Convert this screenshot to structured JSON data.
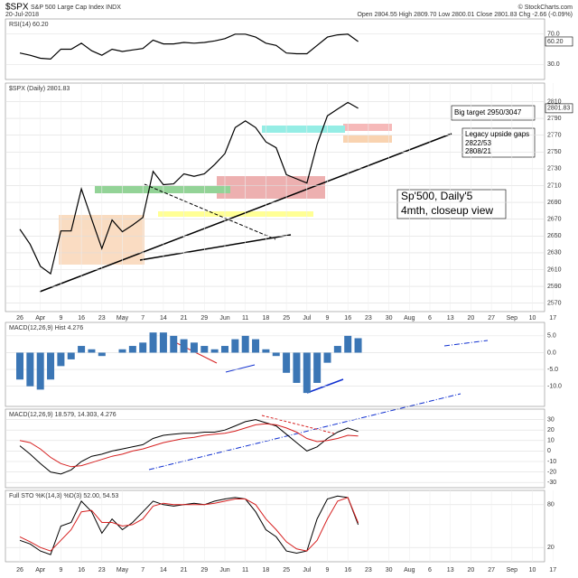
{
  "header": {
    "symbol": "$SPX",
    "name": "S&P 500 Large Cap Index INDX",
    "source": "© StockCharts.com",
    "date": "20-Jul-2018",
    "quote": "Open 2804.55  High 2809.70  Low 2800.01  Close 2801.83  Chg -2.66 (-0.09%)"
  },
  "chart_data": [
    {
      "type": "line",
      "label": "RSI(14) 60.20",
      "color": "#000000",
      "ylim": [
        10,
        90
      ],
      "yticks": [
        {
          "value": 30,
          "label": "30.0"
        },
        {
          "value": 70,
          "label": "70.0"
        }
      ],
      "last_label": "60.20",
      "values": [
        45,
        42,
        38,
        37,
        50,
        50,
        58,
        48,
        42,
        50,
        47,
        49,
        51,
        62,
        57,
        57,
        59,
        58,
        59,
        61,
        64,
        70,
        70,
        66,
        58,
        55,
        45,
        44,
        44,
        55,
        66,
        69,
        70,
        60.2,
        null,
        null,
        null,
        null,
        null,
        null,
        null,
        null,
        null,
        null,
        null,
        null,
        null,
        null,
        null,
        null,
        null,
        null,
        null,
        null
      ]
    },
    {
      "type": "line",
      "label": "$SPX (Daily) 2801.83",
      "color": "#000000",
      "ylim": [
        2560,
        2832
      ],
      "yticks": [
        2570,
        2590,
        2610,
        2630,
        2650,
        2670,
        2690,
        2710,
        2730,
        2750,
        2770,
        2790,
        2810
      ],
      "last_label": "2801.83",
      "categories": [
        "26",
        null,
        "Apr",
        null,
        "9",
        null,
        "16",
        null,
        "23",
        null,
        "May",
        null,
        "7",
        null,
        "14",
        null,
        "21",
        null,
        "29",
        null,
        "Jun",
        null,
        "11",
        null,
        "18",
        null,
        "25",
        null,
        "Jul",
        null,
        "9",
        null,
        "16",
        null,
        "23",
        null,
        "30",
        null,
        "Aug",
        null,
        "6",
        null,
        "13",
        null,
        "20",
        null,
        "27",
        null,
        "Sep",
        null,
        "10",
        null,
        "17",
        null
      ],
      "values": [
        2658,
        2640,
        2614,
        2605,
        2656,
        2656,
        2706,
        2670,
        2635,
        2669,
        2655,
        2663,
        2672,
        2727,
        2711,
        2712,
        2724,
        2721,
        2724,
        2735,
        2748,
        2779,
        2787,
        2779,
        2762,
        2755,
        2723,
        2718,
        2713,
        2759,
        2793,
        2801,
        2809,
        2802,
        null,
        null,
        null,
        null,
        null,
        null,
        null,
        null,
        null,
        null,
        null,
        null,
        null,
        null,
        null,
        null,
        null,
        null,
        null,
        null
      ],
      "annotations": [
        "Big target 2950/3047",
        "Legacy upside gaps",
        "2822/53",
        "2808/21",
        "Sp'500, Daily'5",
        "4mth, closeup view"
      ]
    },
    {
      "type": "bar",
      "label": "MACD(12,26,9) Hist 4.276",
      "color": "#3b76b5",
      "ylim": [
        -16,
        9
      ],
      "yticks": [
        {
          "value": -10,
          "label": "-10.0"
        },
        {
          "value": -5,
          "label": "-5.0"
        },
        {
          "value": 0,
          "label": "0.0"
        },
        {
          "value": 5,
          "label": "5.0"
        }
      ],
      "values": [
        -8,
        -10,
        -11,
        -8,
        -4,
        -2,
        2,
        1,
        -1,
        0,
        1,
        2,
        3,
        6,
        6,
        5,
        4,
        3,
        2,
        1,
        2,
        4,
        5,
        4,
        1,
        -1,
        -6,
        -9,
        -12,
        -9,
        -3,
        2,
        5,
        4.3,
        null,
        null,
        null,
        null,
        null,
        null,
        null,
        null,
        null,
        null,
        null,
        null,
        null,
        null,
        null,
        null,
        null,
        null,
        null,
        null
      ]
    },
    {
      "type": "line",
      "label": "MACD(12,26,9) 18.579, 14.303, 4.276",
      "ylim": [
        -35,
        40
      ],
      "yticks": [
        -30,
        -20,
        -10,
        0,
        10,
        20,
        30
      ],
      "series": [
        {
          "color": "#000000",
          "values": [
            5,
            -3,
            -12,
            -20,
            -22,
            -18,
            -10,
            -5,
            -3,
            0,
            2,
            4,
            6,
            12,
            15,
            16,
            17,
            17,
            18,
            18,
            20,
            24,
            28,
            30,
            27,
            24,
            16,
            8,
            0,
            4,
            12,
            18,
            22,
            18.6,
            null,
            null,
            null,
            null,
            null,
            null,
            null,
            null,
            null,
            null,
            null,
            null,
            null,
            null,
            null,
            null,
            null,
            null,
            null,
            null
          ]
        },
        {
          "color": "#d62020",
          "values": [
            10,
            8,
            2,
            -6,
            -12,
            -15,
            -14,
            -11,
            -8,
            -5,
            -3,
            0,
            2,
            5,
            8,
            10,
            12,
            13,
            15,
            16,
            17,
            19,
            22,
            25,
            26,
            25,
            22,
            18,
            12,
            9,
            10,
            12,
            15,
            14.3,
            null,
            null,
            null,
            null,
            null,
            null,
            null,
            null,
            null,
            null,
            null,
            null,
            null,
            null,
            null,
            null,
            null,
            null,
            null,
            null
          ]
        }
      ]
    },
    {
      "type": "line",
      "label": "Full STO %K(14,3) %D(3) 52.00, 54.53",
      "ylim": [
        0,
        100
      ],
      "yticks": [
        20,
        80
      ],
      "categories": [
        "26",
        null,
        "Apr",
        null,
        "9",
        null,
        "16",
        null,
        "23",
        null,
        "May",
        null,
        "7",
        null,
        "14",
        null,
        "21",
        null,
        "29",
        null,
        "Jun",
        null,
        "11",
        null,
        "18",
        null,
        "25",
        null,
        "Jul",
        null,
        "9",
        null,
        "16",
        null,
        "23",
        null,
        "30",
        null,
        "Aug",
        null,
        "6",
        null,
        "13",
        null,
        "20",
        null,
        "27",
        null,
        "Sep",
        null,
        "10",
        null,
        "17",
        null
      ],
      "series": [
        {
          "color": "#000000",
          "values": [
            30,
            25,
            15,
            10,
            50,
            55,
            85,
            70,
            40,
            60,
            45,
            55,
            70,
            85,
            80,
            78,
            80,
            82,
            80,
            85,
            88,
            90,
            88,
            70,
            45,
            35,
            15,
            12,
            15,
            60,
            88,
            92,
            90,
            52,
            null,
            null,
            null,
            null,
            null,
            null,
            null,
            null,
            null,
            null,
            null,
            null,
            null,
            null,
            null,
            null,
            null,
            null,
            null,
            null
          ]
        },
        {
          "color": "#d62020",
          "values": [
            35,
            28,
            20,
            15,
            30,
            45,
            70,
            72,
            55,
            55,
            50,
            52,
            60,
            78,
            82,
            80,
            80,
            80,
            80,
            82,
            85,
            88,
            88,
            80,
            60,
            45,
            28,
            18,
            15,
            30,
            60,
            85,
            90,
            54.5,
            null,
            null,
            null,
            null,
            null,
            null,
            null,
            null,
            null,
            null,
            null,
            null,
            null,
            null,
            null,
            null,
            null,
            null,
            null,
            null
          ]
        }
      ]
    }
  ]
}
